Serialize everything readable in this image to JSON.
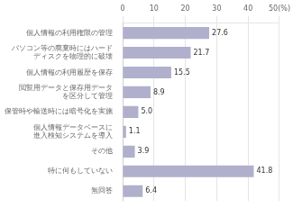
{
  "chart_data": {
    "type": "bar",
    "orientation": "horizontal",
    "categories": [
      "個人情報の利用権限の管理",
      "パソコン等の廃棄時にはハード\nディスクを物理的に破壊",
      "個人情報の利用履歴を保存",
      "閲覧用データと保存用データ\nを区分して管理",
      "保管時や輸送時には暗号化を実施",
      "個人情報データベースに\n進入検知システムを導入",
      "その他",
      "特に何もしていない",
      "無回答"
    ],
    "values": [
      27.6,
      21.7,
      15.5,
      8.9,
      5.0,
      1.1,
      3.9,
      41.8,
      6.4
    ],
    "value_labels": [
      "27.6",
      "21.7",
      "15.5",
      "8.9",
      "5.0",
      "1.1",
      "3.9",
      "41.8",
      "6.4"
    ],
    "data_labels": true,
    "color": "#b0b0cc",
    "xlim": [
      0,
      50
    ],
    "xticks": [
      0,
      10,
      20,
      30,
      40,
      {
        "value": 50,
        "label": "50(%)"
      }
    ],
    "grid": true
  }
}
